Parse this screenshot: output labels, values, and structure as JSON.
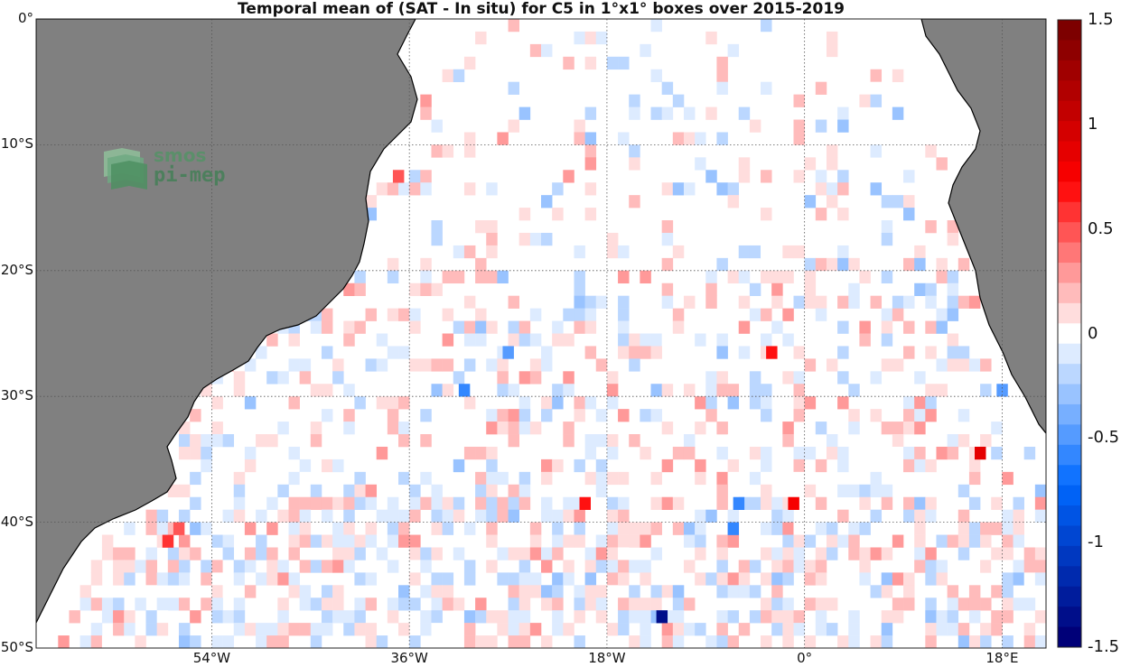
{
  "title": "Temporal mean of (SAT - In situ) for C5 in 1°x1° boxes over 2015-2019",
  "logo": {
    "line1": "smos",
    "line2": "pi-mep",
    "icon": "smos-pimep-logo-icon"
  },
  "axes": {
    "lon_range": [
      -70,
      22
    ],
    "lat_range": [
      -50,
      0
    ],
    "y_ticks": [
      {
        "lat": 0,
        "label": "0°"
      },
      {
        "lat": -10,
        "label": "10°S"
      },
      {
        "lat": -20,
        "label": "20°S"
      },
      {
        "lat": -30,
        "label": "30°S"
      },
      {
        "lat": -40,
        "label": "40°S"
      },
      {
        "lat": -50,
        "label": "50°S"
      }
    ],
    "x_ticks": [
      {
        "lon": -54,
        "label": "54°W"
      },
      {
        "lon": -36,
        "label": "36°W"
      },
      {
        "lon": -18,
        "label": "18°W"
      },
      {
        "lon": 0,
        "label": "0°"
      },
      {
        "lon": 18,
        "label": "18°E"
      }
    ],
    "gridlines": "dotted"
  },
  "colorbar": {
    "range": [
      -1.5,
      1.5
    ],
    "ticks": [
      {
        "value": 1.5,
        "label": "1.5"
      },
      {
        "value": 1,
        "label": "1"
      },
      {
        "value": 0.5,
        "label": "0.5"
      },
      {
        "value": 0,
        "label": "0"
      },
      {
        "value": -0.5,
        "label": "-0.5"
      },
      {
        "value": -1,
        "label": "-1"
      },
      {
        "value": -1.5,
        "label": "-1.5"
      }
    ],
    "colormap": "blue-white-red"
  },
  "colors": {
    "land": "#808080",
    "coast": "#000000",
    "ocean": "#ffffff"
  },
  "chart_data": {
    "type": "heatmap",
    "cell_size_deg": 1,
    "highlights": [
      {
        "lon": -58,
        "lat": -41.5,
        "value": 0.6
      },
      {
        "lon": -57,
        "lat": -40.5,
        "value": 0.5
      },
      {
        "lon": -37,
        "lat": -12.5,
        "value": 0.5
      },
      {
        "lon": -20,
        "lat": -38.5,
        "value": 0.7
      },
      {
        "lon": -13,
        "lat": -47.5,
        "value": -1.4
      },
      {
        "lon": -6,
        "lat": -38.5,
        "value": -0.6
      },
      {
        "lon": -6.5,
        "lat": -40.5,
        "value": -0.6
      },
      {
        "lon": -3,
        "lat": -26.5,
        "value": 0.7
      },
      {
        "lon": -1,
        "lat": -38.5,
        "value": 0.8
      },
      {
        "lon": 16,
        "lat": -34.5,
        "value": 0.9
      },
      {
        "lon": -31,
        "lat": -29.5,
        "value": -0.6
      },
      {
        "lon": -27,
        "lat": -26.5,
        "value": -0.5
      },
      {
        "lon": 18,
        "lat": -29.5,
        "value": -0.5
      }
    ]
  }
}
